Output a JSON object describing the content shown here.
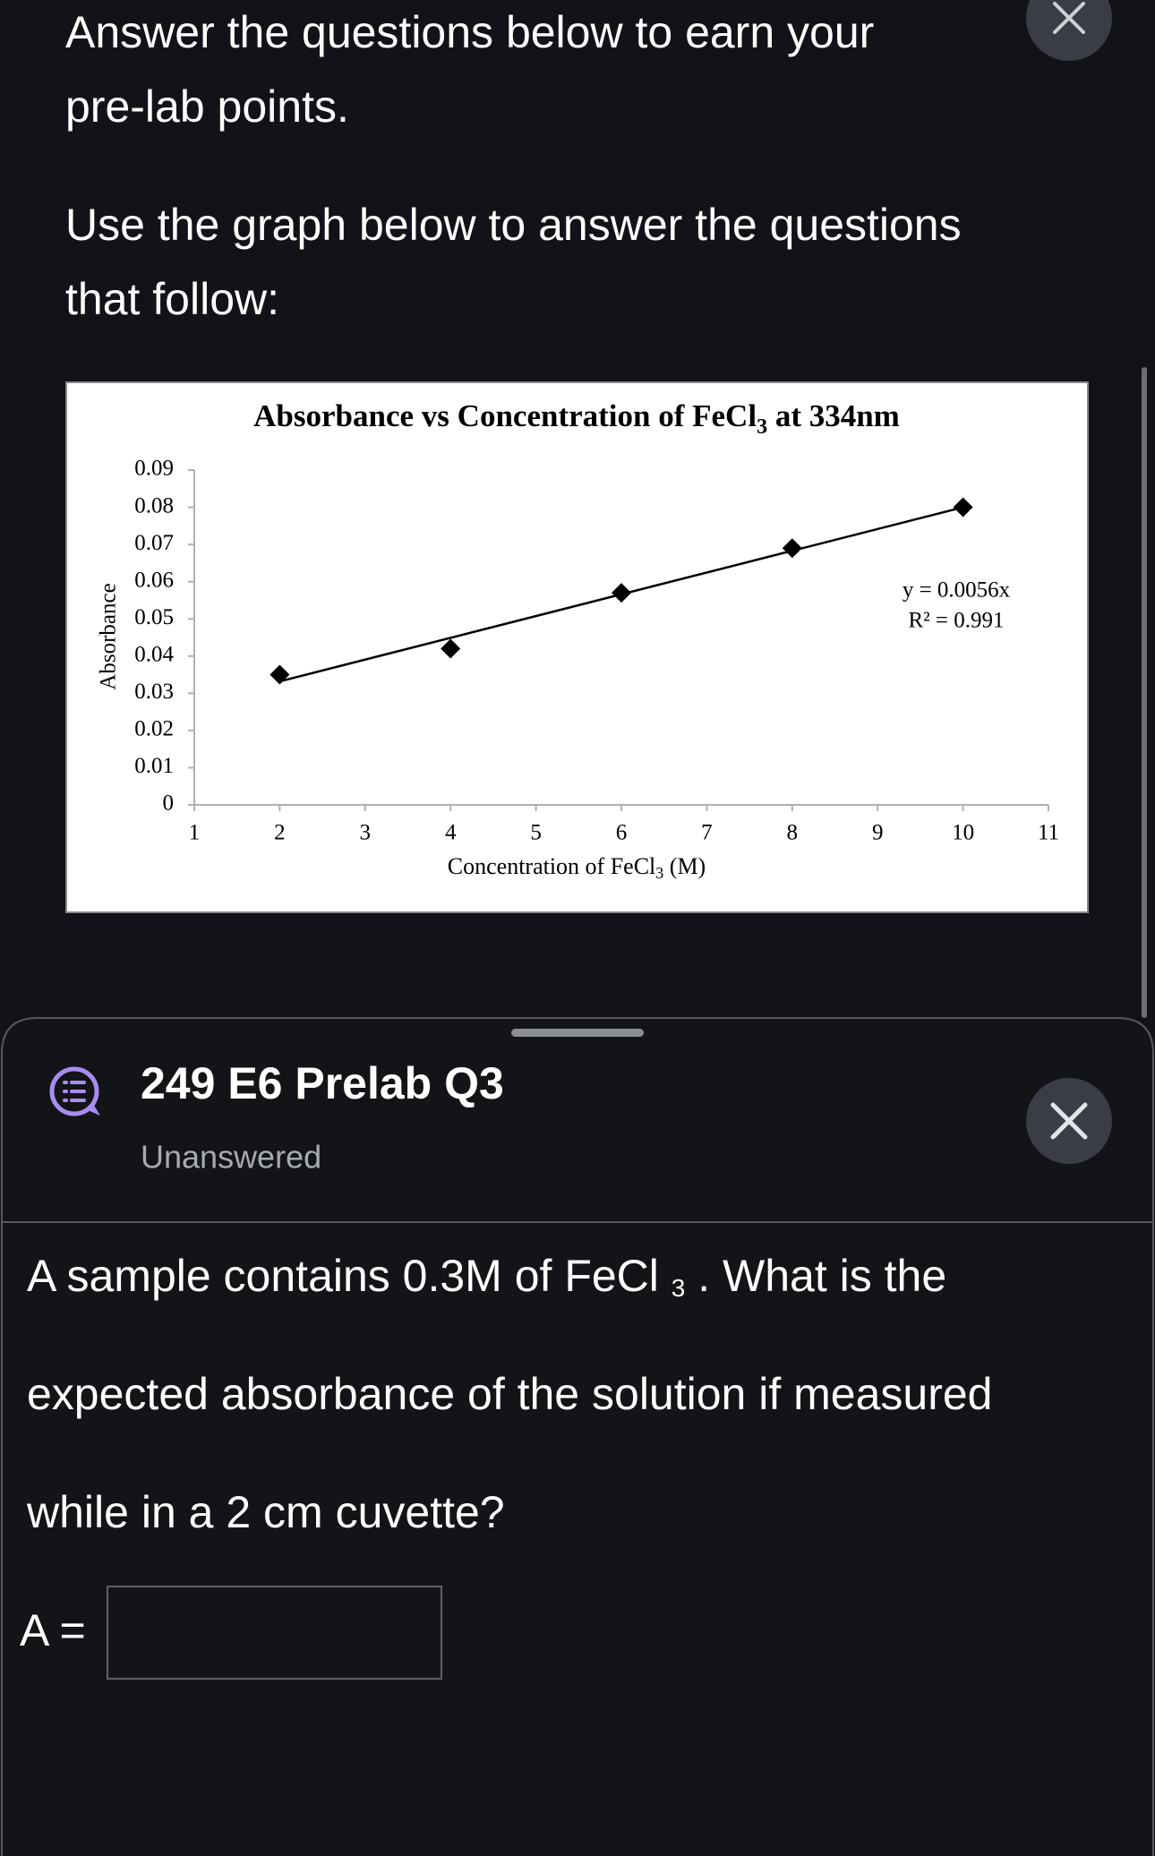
{
  "header": {
    "line1": "Answer the questions below to earn your",
    "line2": "pre-lab points.",
    "line3": "Use the graph below to answer the questions",
    "line4": "that follow:"
  },
  "chart_data": {
    "type": "scatter",
    "title": [
      "Absorbance vs Concentration of FeCl",
      "3",
      " at 334nm"
    ],
    "x_label": [
      "Concentration of FeCl",
      "3",
      " (M)"
    ],
    "y_label": "Absorbance",
    "series": [
      {
        "name": "Absorbance",
        "color": "#000000",
        "x": [
          2,
          4,
          6,
          8,
          10
        ],
        "values": [
          0.035,
          0.042,
          0.057,
          0.069,
          0.08
        ]
      }
    ],
    "trendline": {
      "type": "linear",
      "equation": "y = 0.0056x",
      "r2": "R² = 0.991"
    },
    "xlim": [
      1,
      11
    ],
    "xticks": [
      1,
      2,
      3,
      4,
      5,
      6,
      7,
      8,
      9,
      10,
      11
    ],
    "ylim": [
      0,
      0.09
    ],
    "yticks": [
      0,
      0.01,
      0.02,
      0.03,
      0.04,
      0.05,
      0.06,
      0.07,
      0.08,
      0.09
    ],
    "grid": false
  },
  "sheet": {
    "title": "249 E6 Prelab Q3",
    "status": "Unanswered",
    "question": {
      "line1": [
        "A sample contains 0.3M of FeCl ",
        "3",
        " . What is the"
      ],
      "line2": "expected absorbance of the solution if measured",
      "line3": "while in a 2 cm cuvette?"
    },
    "answer_label": "A ="
  }
}
